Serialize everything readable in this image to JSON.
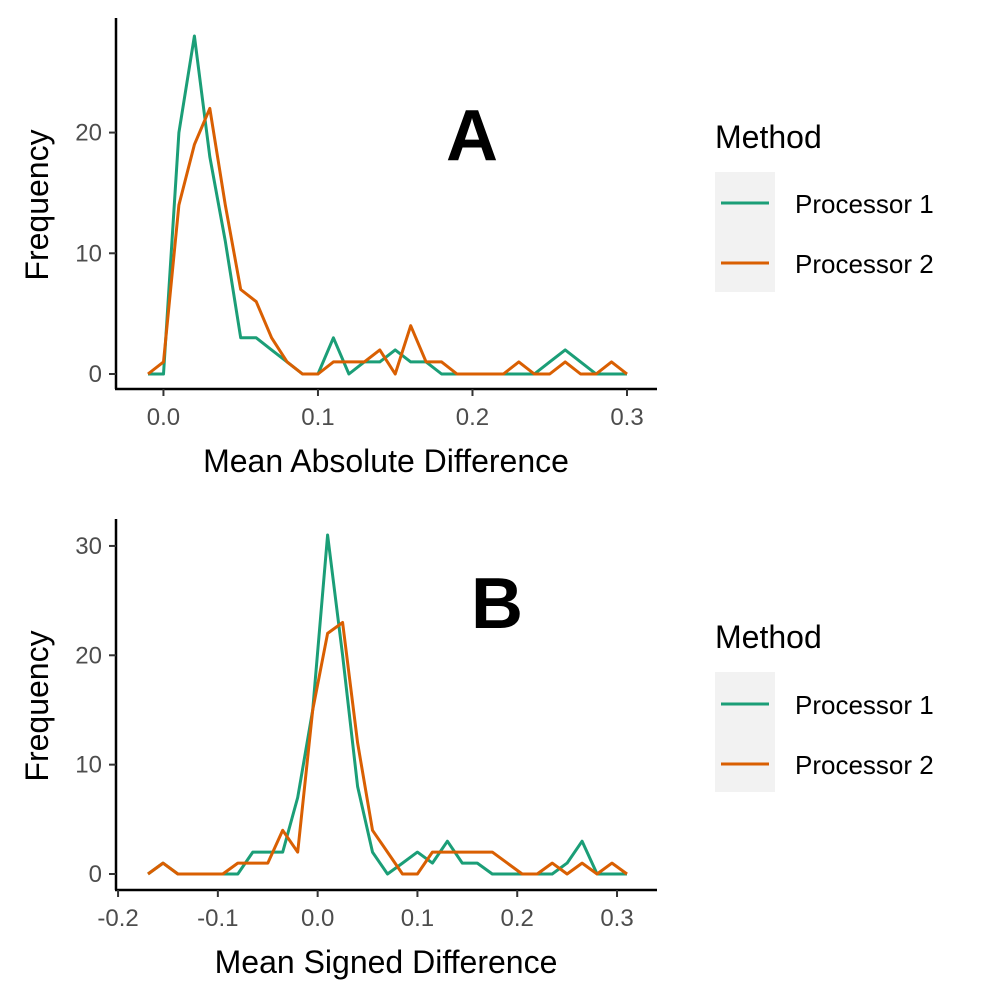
{
  "chart_data": [
    {
      "type": "line",
      "panel_label": "A",
      "xlabel": "Mean Absolute Difference",
      "ylabel": "Frequency",
      "xlim": [
        -0.01,
        0.3
      ],
      "ylim": [
        0,
        28
      ],
      "xticks": [
        0.0,
        0.1,
        0.2,
        0.3
      ],
      "xtick_labels": [
        "0.0",
        "0.1",
        "0.2",
        "0.3"
      ],
      "yticks": [
        0,
        10,
        20
      ],
      "ytick_labels": [
        "0",
        "10",
        "20"
      ],
      "legend": {
        "title": "Method",
        "position": "right"
      },
      "series": [
        {
          "name": "Processor 1",
          "color": "#1b9e77",
          "x": [
            -0.01,
            0.0,
            0.01,
            0.02,
            0.03,
            0.04,
            0.05,
            0.06,
            0.07,
            0.08,
            0.09,
            0.1,
            0.11,
            0.12,
            0.13,
            0.14,
            0.15,
            0.16,
            0.17,
            0.18,
            0.19,
            0.2,
            0.21,
            0.22,
            0.23,
            0.24,
            0.25,
            0.26,
            0.27,
            0.28,
            0.29,
            0.3
          ],
          "y": [
            0,
            0,
            20,
            28,
            18,
            11,
            3,
            3,
            2,
            1,
            0,
            0,
            3,
            0,
            1,
            1,
            2,
            1,
            1,
            0,
            0,
            0,
            0,
            0,
            0,
            0,
            1,
            2,
            1,
            0,
            0,
            0
          ]
        },
        {
          "name": "Processor 2",
          "color": "#d95f02",
          "x": [
            -0.01,
            0.0,
            0.01,
            0.02,
            0.03,
            0.04,
            0.05,
            0.06,
            0.07,
            0.08,
            0.09,
            0.1,
            0.11,
            0.12,
            0.13,
            0.14,
            0.15,
            0.16,
            0.17,
            0.18,
            0.19,
            0.2,
            0.21,
            0.22,
            0.23,
            0.24,
            0.25,
            0.26,
            0.27,
            0.28,
            0.29,
            0.3
          ],
          "y": [
            0,
            1,
            14,
            19,
            22,
            14,
            7,
            6,
            3,
            1,
            0,
            0,
            1,
            1,
            1,
            2,
            0,
            4,
            1,
            1,
            0,
            0,
            0,
            0,
            1,
            0,
            0,
            1,
            0,
            0,
            1,
            0
          ]
        }
      ]
    },
    {
      "type": "line",
      "panel_label": "B",
      "xlabel": "Mean Signed Difference",
      "ylabel": "Frequency",
      "xlim": [
        -0.17,
        0.31
      ],
      "ylim": [
        0,
        31
      ],
      "xticks": [
        -0.2,
        -0.1,
        0.0,
        0.1,
        0.2,
        0.3
      ],
      "xtick_labels": [
        "-0.2",
        "-0.1",
        "0.0",
        "0.1",
        "0.2",
        "0.3"
      ],
      "yticks": [
        0,
        10,
        20,
        30
      ],
      "ytick_labels": [
        "0",
        "10",
        "20",
        "30"
      ],
      "legend": {
        "title": "Method",
        "position": "right"
      },
      "series": [
        {
          "name": "Processor 1",
          "color": "#1b9e77",
          "x": [
            -0.17,
            -0.155,
            -0.14,
            -0.125,
            -0.11,
            -0.095,
            -0.08,
            -0.065,
            -0.05,
            -0.035,
            -0.02,
            -0.005,
            0.01,
            0.025,
            0.04,
            0.055,
            0.07,
            0.085,
            0.1,
            0.115,
            0.13,
            0.145,
            0.16,
            0.175,
            0.19,
            0.205,
            0.22,
            0.235,
            0.25,
            0.265,
            0.28,
            0.295,
            0.31
          ],
          "y": [
            0,
            1,
            0,
            0,
            0,
            0,
            0,
            2,
            2,
            2,
            7,
            15,
            31,
            20,
            8,
            2,
            0,
            1,
            2,
            1,
            3,
            1,
            1,
            0,
            0,
            0,
            0,
            0,
            1,
            3,
            0,
            0,
            0
          ]
        },
        {
          "name": "Processor 2",
          "color": "#d95f02",
          "x": [
            -0.17,
            -0.155,
            -0.14,
            -0.125,
            -0.11,
            -0.095,
            -0.08,
            -0.065,
            -0.05,
            -0.035,
            -0.02,
            -0.005,
            0.01,
            0.025,
            0.04,
            0.055,
            0.07,
            0.085,
            0.1,
            0.115,
            0.13,
            0.145,
            0.16,
            0.175,
            0.19,
            0.205,
            0.22,
            0.235,
            0.25,
            0.265,
            0.28,
            0.295,
            0.31
          ],
          "y": [
            0,
            1,
            0,
            0,
            0,
            0,
            1,
            1,
            1,
            4,
            2,
            15,
            22,
            23,
            12,
            4,
            2,
            0,
            0,
            2,
            2,
            2,
            2,
            2,
            1,
            0,
            0,
            1,
            0,
            1,
            0,
            1,
            0
          ]
        }
      ]
    }
  ]
}
